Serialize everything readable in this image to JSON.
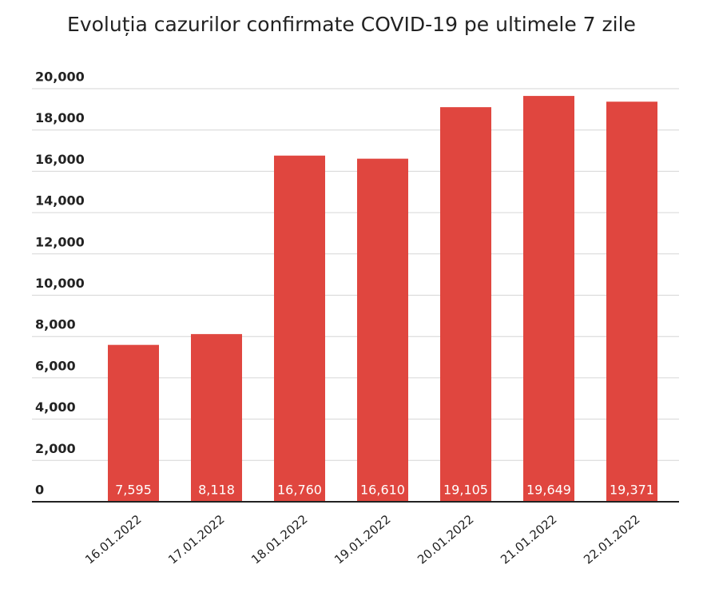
{
  "chart_data": {
    "type": "bar",
    "title": "Evoluția cazurilor confirmate COVID-19 pe ultimele 7 zile",
    "categories": [
      "16.01.2022",
      "17.01.2022",
      "18.01.2022",
      "19.01.2022",
      "20.01.2022",
      "21.01.2022",
      "22.01.2022"
    ],
    "values": [
      7595,
      8118,
      16760,
      16610,
      19105,
      19649,
      19371
    ],
    "value_labels": [
      "7,595",
      "8,118",
      "16,760",
      "16,610",
      "19,105",
      "19,649",
      "19,371"
    ],
    "color": "#e0463f",
    "ylim": [
      0,
      20000
    ],
    "yticks": [
      0,
      {
        "value": 2000,
        "label": "2,000"
      },
      {
        "value": 4000,
        "label": "4,000"
      },
      {
        "value": 6000,
        "label": "6,000"
      },
      {
        "value": 8000,
        "label": "8,000"
      },
      {
        "value": 10000,
        "label": "10,000"
      },
      {
        "value": 12000,
        "label": "12,000"
      },
      {
        "value": 14000,
        "label": "14,000"
      },
      {
        "value": 16000,
        "label": "16,000"
      },
      {
        "value": 18000,
        "label": "18,000"
      },
      {
        "value": 20000,
        "label": "20,000"
      }
    ],
    "grid": true
  }
}
